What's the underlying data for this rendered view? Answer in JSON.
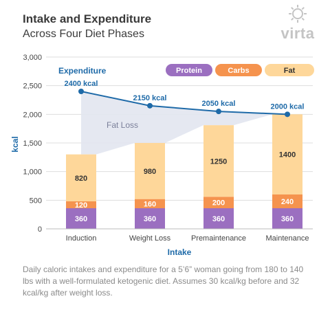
{
  "title": "Intake and Expenditure",
  "subtitle": "Across Four Diet Phases",
  "logo_text": "virta",
  "caption": "Daily caloric intakes and expenditure for a 5’6” woman going from 180 to 140 lbs with a well-formulated ketogenic diet. Assumes 30 kcal/kg before and 32 kcal/kg after weight loss.",
  "colors": {
    "protein": "#9b6fc0",
    "carbs": "#f5934e",
    "fat": "#fed79a",
    "expenditure": "#1e6aa8",
    "fat_loss_area": "#e2e5f0",
    "axis_text": "#444444",
    "axis_title": "#1e6aa8"
  },
  "chart_data": {
    "type": "bar",
    "stacked": true,
    "categories": [
      "Induction",
      "Weight Loss",
      "Premaintenance",
      "Maintenance"
    ],
    "series": [
      {
        "name": "Protein",
        "values": [
          360,
          360,
          360,
          360
        ]
      },
      {
        "name": "Carbs",
        "values": [
          120,
          160,
          200,
          240
        ]
      },
      {
        "name": "Fat",
        "values": [
          820,
          980,
          1250,
          1400
        ]
      }
    ],
    "line": {
      "name": "Expenditure",
      "values": [
        2400,
        2150,
        2050,
        2000
      ],
      "labels": [
        "2400 kcal",
        "2150 kcal",
        "2050 kcal",
        "2000 kcal"
      ]
    },
    "area_label": "Fat Loss",
    "xlabel": "Intake",
    "ylabel": "kcal",
    "ylim": [
      0,
      3000
    ],
    "yticks": [
      "0",
      "500",
      "1,000",
      "1,500",
      "2,000",
      "2,500",
      "3,000"
    ],
    "grid": true,
    "legend_position": "top-right"
  }
}
